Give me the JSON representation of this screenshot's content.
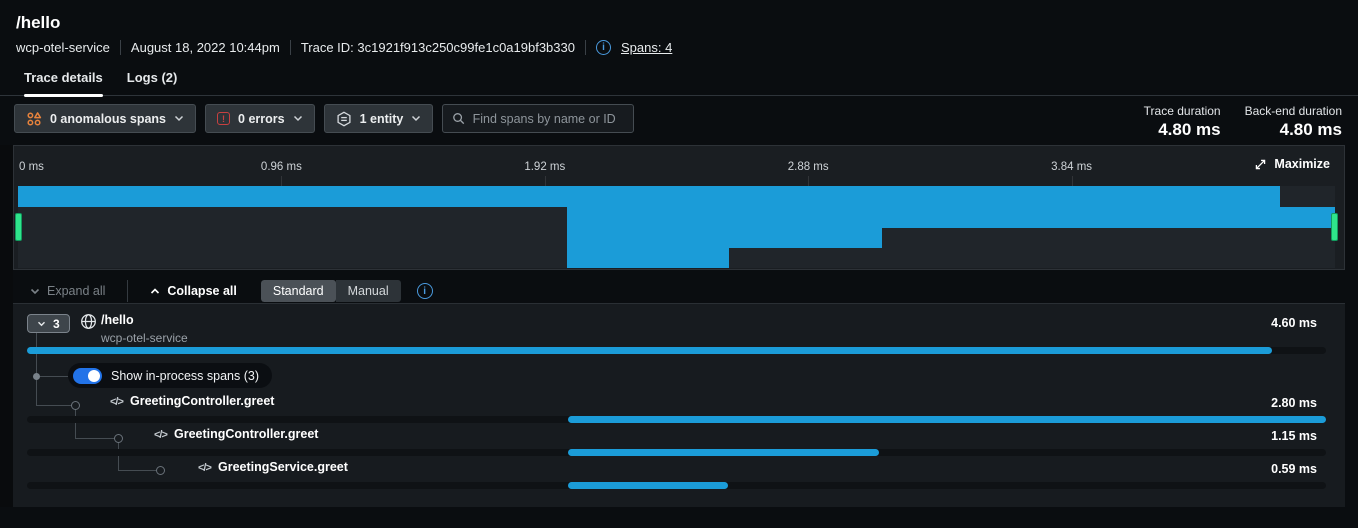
{
  "header": {
    "title": "/hello",
    "service": "wcp-otel-service",
    "timestamp": "August 18, 2022 10:44pm",
    "trace_id": "Trace ID: 3c1921f913c250c99fe1c0a19bf3b330",
    "spans_link": "Spans: 4"
  },
  "tabs": {
    "trace_details": "Trace details",
    "logs": "Logs (2)"
  },
  "filters": {
    "anomalous_label": "0 anomalous spans",
    "errors_label": "0 errors",
    "entity_label": "1 entity",
    "error_glyph": "!",
    "search_placeholder": "Find spans by name or ID"
  },
  "stats": {
    "trace_duration_label": "Trace duration",
    "trace_duration_value": "4.80 ms",
    "backend_duration_label": "Back-end duration",
    "backend_duration_value": "4.80 ms"
  },
  "minimap": {
    "ticks": [
      "0 ms",
      "0.96 ms",
      "1.92 ms",
      "2.88 ms",
      "3.84 ms"
    ],
    "maximize_label": "Maximize"
  },
  "controls": {
    "expand_all": "Expand all",
    "collapse_all": "Collapse all",
    "mode_standard": "Standard",
    "mode_manual": "Manual",
    "selected_mode": "Standard"
  },
  "toggle": {
    "label": "Show in-process spans (3)",
    "state": "on"
  },
  "icons": {
    "code_glyph": "</>"
  },
  "trace": {
    "total_ms": 4.8,
    "root_count_badge": "3",
    "spans": [
      {
        "name": "/hello",
        "service": "wcp-otel-service",
        "duration_label": "4.60 ms",
        "start_ms": 0.0,
        "duration_ms": 4.6
      },
      {
        "name": "GreetingController.greet",
        "duration_label": "2.80 ms",
        "start_ms": 2.0,
        "duration_ms": 2.8
      },
      {
        "name": "GreetingController.greet",
        "duration_label": "1.15 ms",
        "start_ms": 2.0,
        "duration_ms": 1.15
      },
      {
        "name": "GreetingService.greet",
        "duration_label": "0.59 ms",
        "start_ms": 2.0,
        "duration_ms": 0.59
      }
    ]
  },
  "colors": {
    "span_bar_blue": "#1b9cd8",
    "brush_handle_green": "#2fe48b",
    "toggle_blue": "#2273e8",
    "info_blue": "#4a9ade",
    "anomaly_orange": "#e8833c",
    "error_red": "#c84040"
  }
}
